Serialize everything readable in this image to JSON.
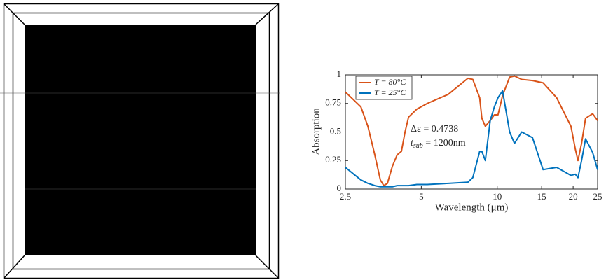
{
  "chart_data": {
    "type": "line",
    "xlabel": "Wavelength (μm)",
    "ylabel": "Absorption",
    "x": [
      2.5,
      2.7,
      2.88,
      3.07,
      3.27,
      3.44,
      3.55,
      3.67,
      3.84,
      4.01,
      4.17,
      4.31,
      4.45,
      4.8,
      5.28,
      6.4,
      7.65,
      8.0,
      8.52,
      8.69,
      8.97,
      9.38,
      9.74,
      10.07,
      10.5,
      11.2,
      11.7,
      12.5,
      13.8,
      15.2,
      17.2,
      19.6,
      20.4,
      20.9,
      21.6,
      22.4,
      23.9,
      25
    ],
    "series": [
      {
        "name": "T = 80°C",
        "color": "#d95319",
        "values": [
          0.85,
          0.78,
          0.72,
          0.55,
          0.3,
          0.08,
          0.03,
          0.05,
          0.2,
          0.3,
          0.33,
          0.5,
          0.63,
          0.7,
          0.75,
          0.83,
          0.97,
          0.96,
          0.8,
          0.62,
          0.55,
          0.6,
          0.65,
          0.65,
          0.82,
          0.98,
          0.99,
          0.96,
          0.95,
          0.93,
          0.8,
          0.55,
          0.35,
          0.25,
          0.4,
          0.62,
          0.66,
          0.6
        ]
      },
      {
        "name": "T = 25°C",
        "color": "#0072bd",
        "values": [
          0.19,
          0.13,
          0.08,
          0.05,
          0.03,
          0.02,
          0.02,
          0.02,
          0.02,
          0.03,
          0.03,
          0.03,
          0.03,
          0.04,
          0.04,
          0.05,
          0.06,
          0.1,
          0.33,
          0.33,
          0.25,
          0.6,
          0.72,
          0.8,
          0.86,
          0.5,
          0.4,
          0.5,
          0.45,
          0.17,
          0.19,
          0.12,
          0.13,
          0.1,
          0.25,
          0.44,
          0.32,
          0.17
        ]
      }
    ],
    "xlim": [
      2.5,
      25
    ],
    "xticks": [
      2.5,
      5,
      10,
      15,
      20,
      25
    ],
    "xscale": "log",
    "ylim": [
      0,
      1
    ],
    "yticks": [
      0,
      0.25,
      0.5,
      0.75,
      1
    ],
    "grid": false,
    "legend": "upper left",
    "annotations": [
      {
        "text": "Δε = 0.4738"
      },
      {
        "text": "t",
        "subscript": "sub",
        "text_after": " = 1200nm"
      }
    ]
  }
}
